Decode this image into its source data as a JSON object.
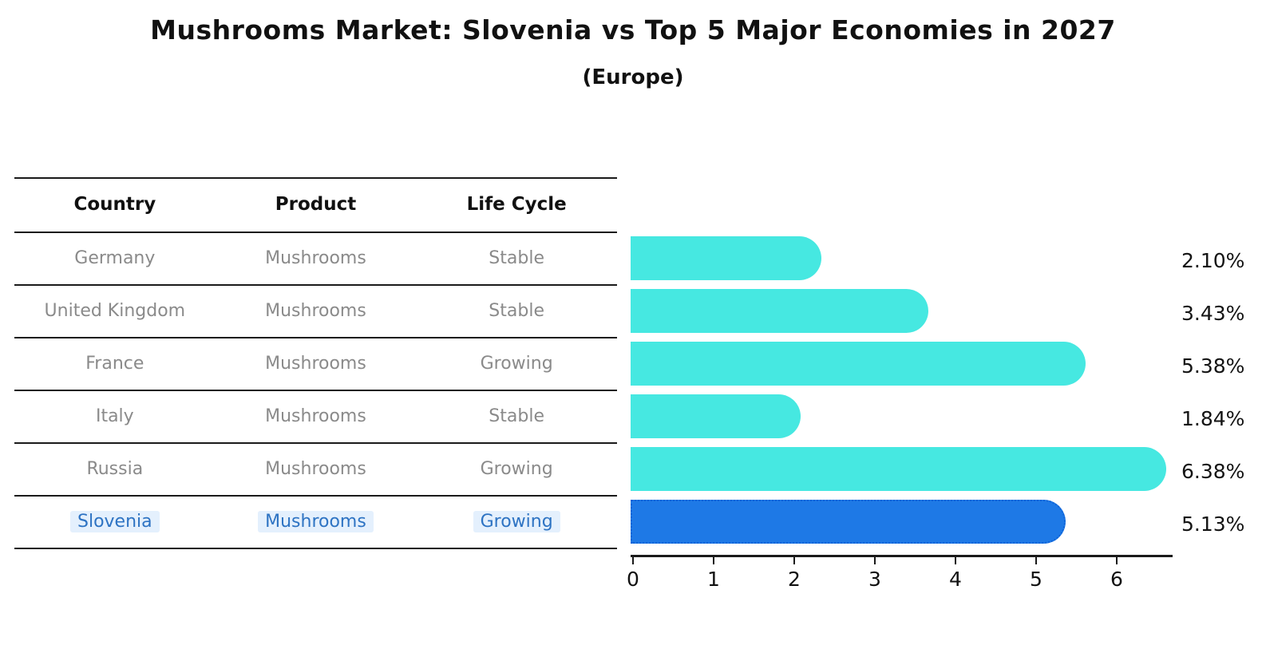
{
  "title": "Mushrooms Market: Slovenia vs Top 5 Major Economies in 2027",
  "subtitle": "(Europe)",
  "table": {
    "headers": {
      "country": "Country",
      "product": "Product",
      "life_cycle": "Life Cycle"
    },
    "rows": [
      {
        "country": "Germany",
        "product": "Mushrooms",
        "life_cycle": "Stable"
      },
      {
        "country": "United Kingdom",
        "product": "Mushrooms",
        "life_cycle": "Stable"
      },
      {
        "country": "France",
        "product": "Mushrooms",
        "life_cycle": "Growing"
      },
      {
        "country": "Italy",
        "product": "Mushrooms",
        "life_cycle": "Stable"
      },
      {
        "country": "Russia",
        "product": "Mushrooms",
        "life_cycle": "Growing"
      },
      {
        "country": "Slovenia",
        "product": "Mushrooms",
        "life_cycle": "Growing"
      }
    ],
    "highlighted_country": "Slovenia"
  },
  "chart_data": {
    "type": "bar",
    "orientation": "horizontal",
    "title": "Mushrooms Market: Slovenia vs Top 5 Major Economies in 2027 (Europe)",
    "categories": [
      "Germany",
      "United Kingdom",
      "France",
      "Italy",
      "Russia",
      "Slovenia"
    ],
    "values": [
      2.1,
      3.43,
      5.38,
      1.84,
      6.38,
      5.13
    ],
    "value_labels": [
      "2.10%",
      "3.43%",
      "5.38%",
      "1.84%",
      "6.38%",
      "5.13%"
    ],
    "highlight_index": 5,
    "xticks": [
      "0",
      "1",
      "2",
      "3",
      "4",
      "5",
      "6"
    ],
    "xlim": [
      0,
      6.7
    ],
    "grid": false,
    "legend": "none"
  },
  "colors": {
    "bar": "#46e8e1",
    "bar_highlight": "#1e79e6",
    "bar_highlight_border": "#0e63d8",
    "highlight_text": "#2d73c3",
    "row_text": "#8a8a8a",
    "header_text": "#111111",
    "axis": "#1a1a1a"
  }
}
